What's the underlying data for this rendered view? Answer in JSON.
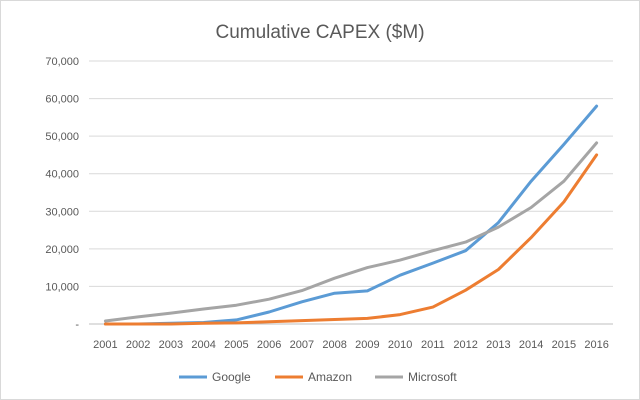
{
  "chart_data": {
    "type": "line",
    "title": "Cumulative CAPEX ($M)",
    "xlabel": "",
    "ylabel": "",
    "categories": [
      "2001",
      "2002",
      "2003",
      "2004",
      "2005",
      "2006",
      "2007",
      "2008",
      "2009",
      "2010",
      "2011",
      "2012",
      "2013",
      "2014",
      "2015",
      "2016"
    ],
    "ylim": [
      0,
      70000
    ],
    "yticks": [
      0,
      10000,
      20000,
      30000,
      40000,
      50000,
      60000,
      70000
    ],
    "ytick_labels": [
      "-",
      "10,000",
      "20,000",
      "30,000",
      "40,000",
      "50,000",
      "60,000",
      "70,000"
    ],
    "grid": "horizontal",
    "legend_position": "bottom",
    "series": [
      {
        "name": "Google",
        "color": "#5b9bd5",
        "values": [
          0,
          0,
          200,
          400,
          1100,
          3200,
          5900,
          8200,
          8800,
          13000,
          16200,
          19500,
          27000,
          38000,
          47800,
          58000
        ]
      },
      {
        "name": "Amazon",
        "color": "#ed7d31",
        "values": [
          0,
          0,
          0,
          200,
          300,
          600,
          900,
          1200,
          1500,
          2500,
          4500,
          9000,
          14500,
          23000,
          32500,
          45000
        ]
      },
      {
        "name": "Microsoft",
        "color": "#a5a5a5",
        "values": [
          800,
          1900,
          2900,
          4000,
          5000,
          6600,
          8900,
          12200,
          15000,
          17000,
          19500,
          21800,
          25800,
          31000,
          38000,
          48200
        ]
      }
    ]
  }
}
